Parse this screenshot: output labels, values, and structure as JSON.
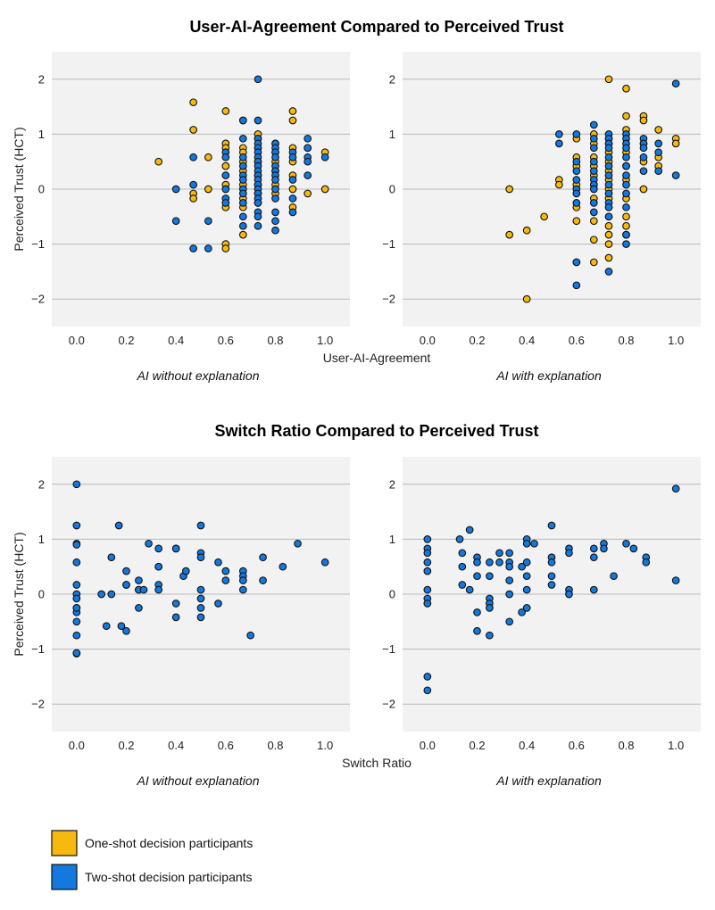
{
  "chart_data": [
    {
      "type": "scatter",
      "title": "User-AI-Agreement Compared to Perceived Trust",
      "xlabel": "User-AI-Agreement",
      "ylabel": "Perceived Trust (HCT)",
      "xlim": [
        -0.1,
        1.1
      ],
      "ylim": [
        -2.5,
        2.5
      ],
      "xticks": [
        "0.0",
        "0.2",
        "0.4",
        "0.6",
        "0.8",
        "1.0"
      ],
      "yticks": [
        "−2",
        "−1",
        "0",
        "1",
        "2"
      ],
      "grid": "horizontal",
      "panels": [
        {
          "subtitle": "AI without explanation",
          "series": [
            {
              "name": "One-shot decision participants",
              "color": "#f5b90f",
              "x": [
                0.33,
                0.47,
                0.47,
                0.47,
                0.47,
                0.53,
                0.53,
                0.6,
                0.6,
                0.6,
                0.6,
                0.6,
                0.6,
                0.6,
                0.6,
                0.67,
                0.67,
                0.67,
                0.67,
                0.67,
                0.67,
                0.67,
                0.67,
                0.67,
                0.73,
                0.73,
                0.73,
                0.73,
                0.73,
                0.73,
                0.73,
                0.73,
                0.8,
                0.8,
                0.8,
                0.8,
                0.8,
                0.8,
                0.87,
                0.87,
                0.87,
                0.87,
                0.87,
                0.87,
                0.87,
                0.93,
                0.93,
                1.0,
                1.0
              ],
              "y": [
                0.5,
                1.58,
                1.08,
                -0.08,
                -0.17,
                0.58,
                0.0,
                1.42,
                0.83,
                0.75,
                0.42,
                0.08,
                -0.33,
                -1.0,
                -1.08,
                1.25,
                0.75,
                0.67,
                0.5,
                0.33,
                0.08,
                -0.17,
                -0.33,
                -0.83,
                1.0,
                0.92,
                0.75,
                0.5,
                0.25,
                0.08,
                -0.08,
                -0.25,
                0.83,
                0.67,
                0.5,
                0.33,
                0.08,
                -0.08,
                1.42,
                1.25,
                0.75,
                0.5,
                0.25,
                0.0,
                -0.33,
                0.75,
                -0.08,
                0.67,
                0.0
              ]
            },
            {
              "name": "Two-shot decision participants",
              "color": "#1479de",
              "x": [
                0.4,
                0.4,
                0.47,
                0.47,
                0.47,
                0.53,
                0.53,
                0.6,
                0.6,
                0.6,
                0.6,
                0.6,
                0.6,
                0.67,
                0.67,
                0.67,
                0.67,
                0.67,
                0.67,
                0.67,
                0.67,
                0.67,
                0.67,
                0.67,
                0.73,
                0.73,
                0.73,
                0.73,
                0.73,
                0.73,
                0.73,
                0.73,
                0.73,
                0.73,
                0.73,
                0.73,
                0.73,
                0.73,
                0.73,
                0.73,
                0.73,
                0.73,
                0.73,
                0.73,
                0.8,
                0.8,
                0.8,
                0.8,
                0.8,
                0.8,
                0.8,
                0.8,
                0.8,
                0.8,
                0.8,
                0.8,
                0.8,
                0.87,
                0.87,
                0.87,
                0.87,
                0.87,
                0.93,
                0.93,
                0.93,
                0.93,
                0.93,
                1.0
              ],
              "y": [
                0.0,
                -0.58,
                0.58,
                0.08,
                -1.08,
                -0.58,
                -1.08,
                0.67,
                0.58,
                0.25,
                0.0,
                -0.17,
                -0.25,
                1.25,
                0.92,
                0.58,
                0.42,
                0.25,
                0.17,
                0.0,
                -0.08,
                -0.25,
                -0.5,
                -0.67,
                2.0,
                1.25,
                0.92,
                0.83,
                0.75,
                0.67,
                0.58,
                0.5,
                0.42,
                0.33,
                0.25,
                0.17,
                0.08,
                0.0,
                -0.08,
                -0.17,
                -0.25,
                -0.42,
                -0.5,
                -0.67,
                0.83,
                0.75,
                0.67,
                0.58,
                0.42,
                0.33,
                0.25,
                0.17,
                0.0,
                -0.17,
                -0.42,
                -0.75,
                -0.58,
                0.67,
                0.58,
                0.17,
                -0.17,
                -0.42,
                0.92,
                0.75,
                0.58,
                0.5,
                0.25,
                0.58
              ]
            }
          ]
        },
        {
          "subtitle": "AI with explanation",
          "series": [
            {
              "name": "One-shot decision participants",
              "color": "#f5b90f",
              "x": [
                0.33,
                0.33,
                0.4,
                0.4,
                0.47,
                0.53,
                0.53,
                0.6,
                0.6,
                0.6,
                0.6,
                0.6,
                0.6,
                0.6,
                0.67,
                0.67,
                0.67,
                0.67,
                0.67,
                0.67,
                0.67,
                0.67,
                0.67,
                0.67,
                0.73,
                0.73,
                0.73,
                0.73,
                0.73,
                0.73,
                0.73,
                0.73,
                0.73,
                0.73,
                0.73,
                0.73,
                0.73,
                0.73,
                0.73,
                0.8,
                0.8,
                0.8,
                0.8,
                0.8,
                0.8,
                0.8,
                0.8,
                0.8,
                0.8,
                0.87,
                0.87,
                0.87,
                0.87,
                0.87,
                0.93,
                0.93,
                0.93,
                1.0,
                1.0
              ],
              "y": [
                0.0,
                -0.83,
                -0.75,
                -2.0,
                -0.5,
                0.17,
                0.08,
                0.92,
                0.58,
                0.42,
                0.08,
                -0.33,
                -1.33,
                -0.58,
                1.0,
                0.83,
                0.42,
                0.25,
                0.08,
                -0.17,
                -0.58,
                -0.92,
                -1.33,
                0.58,
                2.0,
                0.92,
                0.83,
                0.67,
                0.5,
                0.33,
                0.17,
                0.0,
                -0.17,
                -0.33,
                -0.5,
                -0.67,
                -0.83,
                -1.0,
                -1.25,
                1.83,
                1.33,
                1.08,
                0.67,
                0.42,
                0.17,
                -0.17,
                -0.5,
                -0.67,
                -0.83,
                1.33,
                1.25,
                0.83,
                0.5,
                0.0,
                1.08,
                0.42,
                0.58,
                0.92,
                0.83
              ]
            },
            {
              "name": "Two-shot decision participants",
              "color": "#1479de",
              "x": [
                0.53,
                0.53,
                0.6,
                0.6,
                0.6,
                0.6,
                0.6,
                0.6,
                0.6,
                0.6,
                0.6,
                0.67,
                0.67,
                0.67,
                0.67,
                0.67,
                0.67,
                0.67,
                0.67,
                0.67,
                0.67,
                0.73,
                0.73,
                0.73,
                0.73,
                0.73,
                0.73,
                0.73,
                0.73,
                0.73,
                0.73,
                0.73,
                0.73,
                0.73,
                0.8,
                0.8,
                0.8,
                0.8,
                0.8,
                0.8,
                0.8,
                0.8,
                0.8,
                0.8,
                0.8,
                0.8,
                0.87,
                0.87,
                0.87,
                0.87,
                0.87,
                0.93,
                0.93,
                0.93,
                1.0,
                1.0
              ],
              "y": [
                1.0,
                0.83,
                1.0,
                0.5,
                0.33,
                0.17,
                0.0,
                -0.08,
                -0.25,
                -1.33,
                -1.75,
                1.17,
                0.92,
                0.75,
                0.5,
                0.33,
                0.17,
                0.08,
                0.0,
                -0.25,
                -0.42,
                1.0,
                0.92,
                0.83,
                0.75,
                0.58,
                0.42,
                0.25,
                0.08,
                -0.08,
                -0.25,
                -0.5,
                -1.5,
                -0.33,
                1.0,
                0.92,
                0.83,
                0.75,
                0.58,
                0.42,
                0.25,
                0.08,
                -0.08,
                -0.33,
                -0.83,
                -1.0,
                0.92,
                0.83,
                0.75,
                0.58,
                0.33,
                0.83,
                0.67,
                0.33,
                1.92,
                0.25
              ]
            }
          ]
        }
      ]
    },
    {
      "type": "scatter",
      "title": "Switch Ratio Compared to Perceived Trust",
      "xlabel": "Switch Ratio",
      "ylabel": "Perceived Trust (HCT)",
      "xlim": [
        -0.1,
        1.1
      ],
      "ylim": [
        -2.5,
        2.5
      ],
      "xticks": [
        "0.0",
        "0.2",
        "0.4",
        "0.6",
        "0.8",
        "1.0"
      ],
      "yticks": [
        "−2",
        "−1",
        "0",
        "1",
        "2"
      ],
      "grid": "horizontal",
      "panels": [
        {
          "subtitle": "AI without explanation",
          "series": [
            {
              "name": "Two-shot decision participants",
              "color": "#1479de",
              "x": [
                0,
                0,
                0,
                0,
                0,
                0,
                0,
                0,
                0,
                0,
                0,
                0,
                0,
                0,
                0,
                0.1,
                0.12,
                0.14,
                0.14,
                0.17,
                0.18,
                0.2,
                0.2,
                0.2,
                0.2,
                0.25,
                0.25,
                0.25,
                0.25,
                0.27,
                0.29,
                0.33,
                0.33,
                0.33,
                0.33,
                0.33,
                0.4,
                0.4,
                0.4,
                0.4,
                0.43,
                0.44,
                0.5,
                0.5,
                0.5,
                0.5,
                0.5,
                0.5,
                0.5,
                0.57,
                0.57,
                0.6,
                0.6,
                0.67,
                0.67,
                0.67,
                0.67,
                0.7,
                0.75,
                0.75,
                0.83,
                0.89,
                1.0
              ],
              "y": [
                2.0,
                1.25,
                0.92,
                0.58,
                0.17,
                0.0,
                -0.08,
                -0.25,
                -0.33,
                -0.5,
                -0.75,
                -1.08,
                -0.25,
                0.9,
                -1.07,
                0.0,
                -0.58,
                0.67,
                0.0,
                1.25,
                -0.58,
                0.42,
                0.17,
                0.17,
                -0.67,
                0.25,
                0.08,
                -0.25,
                0.08,
                0.08,
                0.92,
                0.83,
                0.5,
                0.5,
                0.17,
                0.08,
                0.83,
                0.83,
                -0.17,
                -0.42,
                0.33,
                0.42,
                1.25,
                0.75,
                0.67,
                0.08,
                -0.08,
                -0.25,
                -0.42,
                0.58,
                -0.17,
                0.42,
                0.25,
                0.42,
                0.33,
                0.25,
                0.08,
                -0.75,
                0.67,
                0.25,
                0.5,
                0.92,
                0.58
              ]
            }
          ]
        },
        {
          "subtitle": "AI with explanation",
          "series": [
            {
              "name": "Two-shot decision participants",
              "color": "#1479de",
              "x": [
                0,
                0,
                0,
                0,
                0,
                0,
                0,
                0,
                0,
                0,
                0.13,
                0.14,
                0.14,
                0.14,
                0.17,
                0.17,
                0.2,
                0.2,
                0.2,
                0.2,
                0.2,
                0.25,
                0.25,
                0.25,
                0.25,
                0.25,
                0.25,
                0.29,
                0.29,
                0.33,
                0.33,
                0.33,
                0.33,
                0.33,
                0.33,
                0.38,
                0.38,
                0.4,
                0.4,
                0.4,
                0.4,
                0.4,
                0.4,
                0.43,
                0.5,
                0.5,
                0.5,
                0.5,
                0.5,
                0.57,
                0.57,
                0.57,
                0.57,
                0.67,
                0.67,
                0.67,
                0.71,
                0.71,
                0.75,
                0.8,
                0.83,
                0.88,
                0.88,
                1.0,
                1.0
              ],
              "y": [
                1.0,
                0.83,
                0.75,
                0.58,
                0.42,
                0.08,
                -0.08,
                -0.17,
                -1.5,
                -1.75,
                1.0,
                0.75,
                0.5,
                0.17,
                1.17,
                0.08,
                0.67,
                0.58,
                0.33,
                -0.33,
                -0.67,
                0.58,
                0.33,
                -0.08,
                -0.17,
                -0.25,
                -0.75,
                0.75,
                0.58,
                0.75,
                0.58,
                0.5,
                0.25,
                0.0,
                -0.5,
                0.5,
                -0.33,
                1.0,
                0.92,
                0.58,
                0.33,
                0.08,
                -0.25,
                0.92,
                1.25,
                0.67,
                0.58,
                0.33,
                0.17,
                0.83,
                0.75,
                0.08,
                0.0,
                0.83,
                0.67,
                0.08,
                0.92,
                0.83,
                0.33,
                0.92,
                0.83,
                0.67,
                0.58,
                1.92,
                0.25
              ]
            }
          ]
        }
      ]
    }
  ],
  "legend": [
    {
      "label": "One-shot decision participants",
      "color": "#f5b90f"
    },
    {
      "label": "Two-shot decision participants",
      "color": "#1479de"
    }
  ]
}
